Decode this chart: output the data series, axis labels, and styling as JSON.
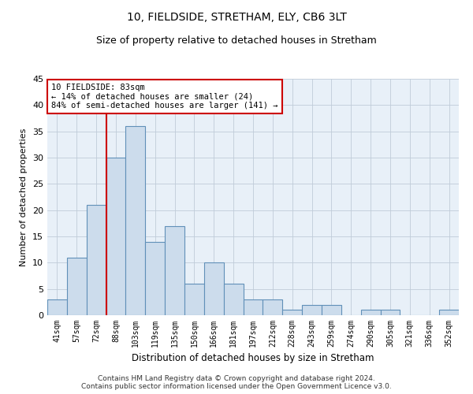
{
  "title": "10, FIELDSIDE, STRETHAM, ELY, CB6 3LT",
  "subtitle": "Size of property relative to detached houses in Stretham",
  "xlabel": "Distribution of detached houses by size in Stretham",
  "ylabel": "Number of detached properties",
  "bar_labels": [
    "41sqm",
    "57sqm",
    "72sqm",
    "88sqm",
    "103sqm",
    "119sqm",
    "135sqm",
    "150sqm",
    "166sqm",
    "181sqm",
    "197sqm",
    "212sqm",
    "228sqm",
    "243sqm",
    "259sqm",
    "274sqm",
    "290sqm",
    "305sqm",
    "321sqm",
    "336sqm",
    "352sqm"
  ],
  "bar_values": [
    3,
    11,
    21,
    30,
    36,
    14,
    17,
    6,
    10,
    6,
    3,
    3,
    1,
    2,
    2,
    0,
    1,
    1,
    0,
    0,
    1
  ],
  "bar_color": "#ccdcec",
  "bar_edge_color": "#6090b8",
  "vline_color": "#cc0000",
  "vline_x": 2.5,
  "annotation_text": "10 FIELDSIDE: 83sqm\n← 14% of detached houses are smaller (24)\n84% of semi-detached houses are larger (141) →",
  "annotation_box_color": "#ffffff",
  "annotation_box_edge_color": "#cc0000",
  "ylim": [
    0,
    45
  ],
  "yticks": [
    0,
    5,
    10,
    15,
    20,
    25,
    30,
    35,
    40,
    45
  ],
  "footer_line1": "Contains HM Land Registry data © Crown copyright and database right 2024.",
  "footer_line2": "Contains public sector information licensed under the Open Government Licence v3.0.",
  "bg_color": "#ffffff",
  "plot_bg_color": "#e8f0f8",
  "grid_color": "#c0ccd8",
  "title_fontsize": 10,
  "subtitle_fontsize": 9,
  "ylabel_fontsize": 8,
  "xlabel_fontsize": 8.5,
  "tick_fontsize": 7,
  "annotation_fontsize": 7.5,
  "footer_fontsize": 6.5
}
